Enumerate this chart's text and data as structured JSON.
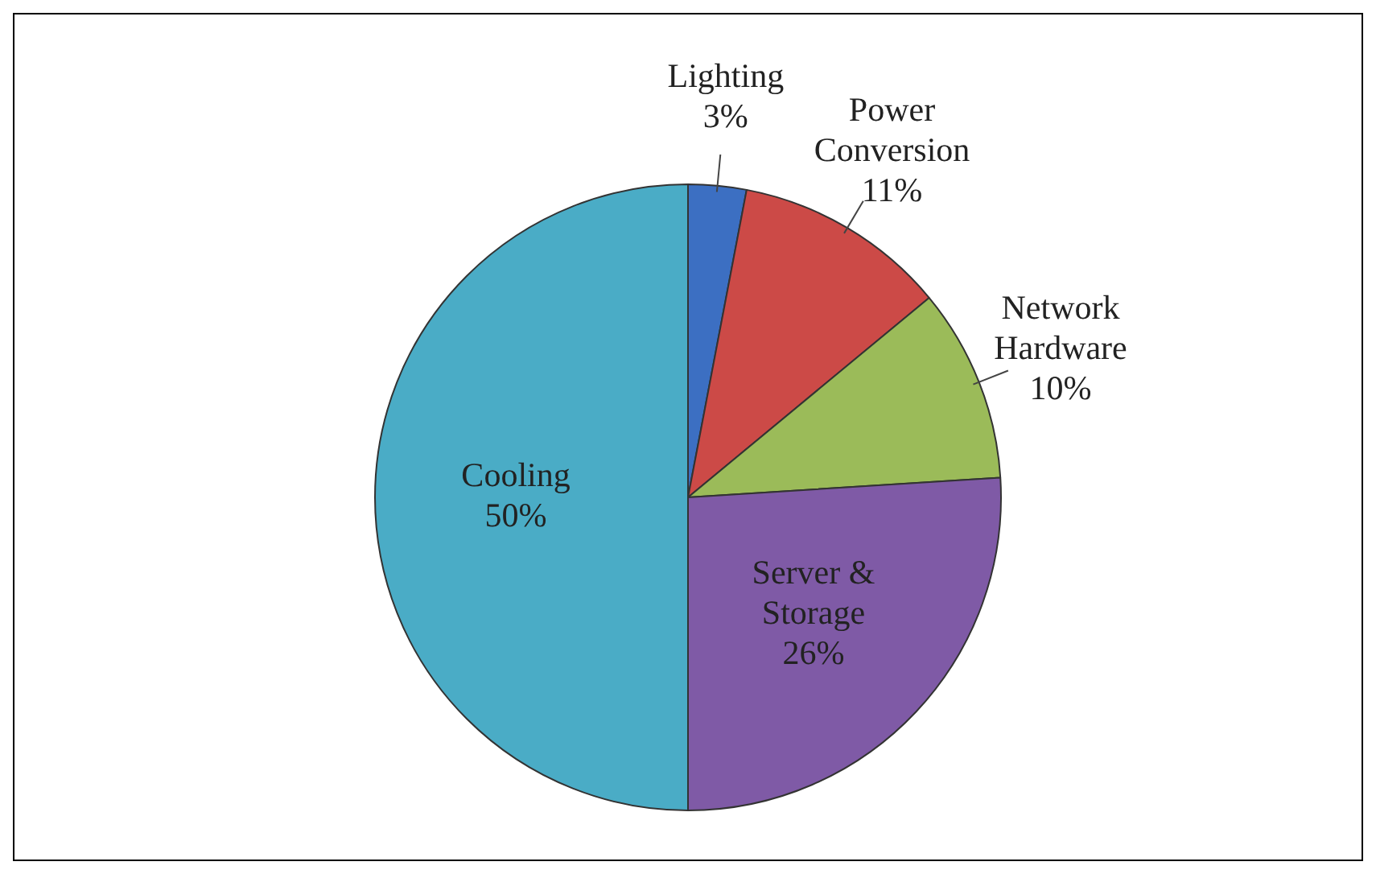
{
  "chart_data": {
    "type": "pie",
    "categories": [
      "Lighting",
      "Power Conversion",
      "Network Hardware",
      "Server & Storage",
      "Cooling"
    ],
    "values": [
      3,
      11,
      10,
      26,
      50
    ],
    "value_labels": [
      "3%",
      "11%",
      "10%",
      "26%",
      "50%"
    ],
    "colors": [
      "#3c6fc2",
      "#cc4a47",
      "#9bbb59",
      "#7f5aa6",
      "#4aacc6"
    ],
    "legend": false
  }
}
